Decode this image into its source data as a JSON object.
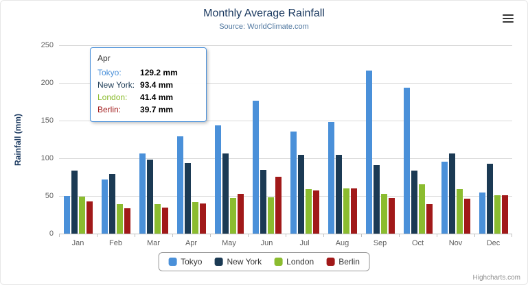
{
  "header": {
    "title": "Monthly Average Rainfall",
    "subtitle": "Source: WorldClimate.com"
  },
  "chart_data": {
    "type": "bar",
    "title": "Monthly Average Rainfall",
    "subtitle": "Source: WorldClimate.com",
    "xlabel": "",
    "ylabel": "Rainfall (mm)",
    "ylim": [
      0,
      250
    ],
    "yticks": [
      0,
      50,
      100,
      150,
      200,
      250
    ],
    "grid": true,
    "legend_position": "bottom",
    "categories": [
      "Jan",
      "Feb",
      "Mar",
      "Apr",
      "May",
      "Jun",
      "Jul",
      "Aug",
      "Sep",
      "Oct",
      "Nov",
      "Dec"
    ],
    "series": [
      {
        "name": "Tokyo",
        "color": "#4a90d9",
        "values": [
          49.9,
          71.5,
          106.4,
          129.2,
          144.0,
          176.0,
          135.6,
          148.5,
          216.4,
          194.1,
          95.6,
          54.4
        ]
      },
      {
        "name": "New York",
        "color": "#1b3a54",
        "values": [
          83.6,
          78.8,
          98.5,
          93.4,
          106.0,
          84.5,
          105.0,
          104.3,
          91.2,
          83.5,
          106.6,
          92.3
        ]
      },
      {
        "name": "London",
        "color": "#8bbc2f",
        "values": [
          48.9,
          38.8,
          39.3,
          41.4,
          47.0,
          48.3,
          59.0,
          59.6,
          52.4,
          65.2,
          59.3,
          51.2
        ]
      },
      {
        "name": "Berlin",
        "color": "#a11919",
        "values": [
          42.4,
          33.2,
          34.5,
          39.7,
          52.6,
          75.5,
          57.4,
          60.4,
          47.6,
          39.1,
          46.8,
          51.1
        ]
      }
    ]
  },
  "tooltip": {
    "category": "Apr",
    "border_color": "#4a90d9",
    "rows": [
      {
        "name": "Tokyo",
        "value": "129.2 mm"
      },
      {
        "name": "New York",
        "value": "93.4 mm"
      },
      {
        "name": "London",
        "value": "41.4 mm"
      },
      {
        "name": "Berlin",
        "value": "39.7 mm"
      }
    ]
  },
  "icons": {
    "context_menu": "hamburger-menu-icon"
  },
  "credits": "Highcharts.com"
}
